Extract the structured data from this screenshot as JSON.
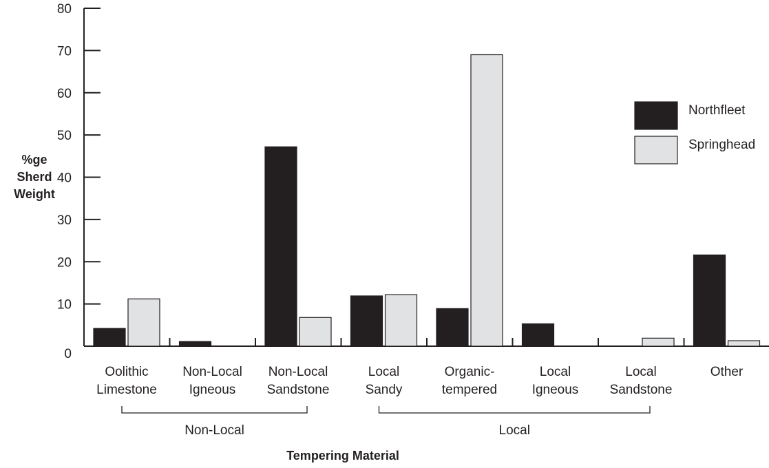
{
  "chart_data": {
    "type": "bar",
    "title": "",
    "xlabel": "Tempering Material",
    "ylabel_lines": [
      "%ge",
      "Sherd",
      "Weight"
    ],
    "ylim": [
      0,
      80
    ],
    "yticks": [
      0,
      10,
      20,
      30,
      40,
      50,
      60,
      70,
      80
    ],
    "categories": [
      [
        "Oolithic",
        "Limestone"
      ],
      [
        "Non-Local",
        "Igneous"
      ],
      [
        "Non-Local",
        "Sandstone"
      ],
      [
        "Local",
        "Sandy"
      ],
      [
        "Organic-",
        "tempered"
      ],
      [
        "Local",
        "Igneous"
      ],
      [
        "Local",
        "Sandstone"
      ],
      [
        "Other"
      ]
    ],
    "series": [
      {
        "name": "Northfleet",
        "color": "#231f20",
        "values": [
          4.2,
          1.1,
          47.2,
          11.9,
          8.9,
          5.3,
          0,
          21.6
        ]
      },
      {
        "name": "Springhead",
        "color": "#e1e2e3",
        "values": [
          11.2,
          0,
          6.8,
          12.2,
          69.0,
          0,
          1.9,
          1.3
        ]
      }
    ],
    "groups": [
      {
        "label": "Non-Local",
        "from": 0,
        "to": 2
      },
      {
        "label": "Local",
        "from": 3,
        "to": 6
      }
    ],
    "legend_position": "top-right",
    "grid": false
  }
}
